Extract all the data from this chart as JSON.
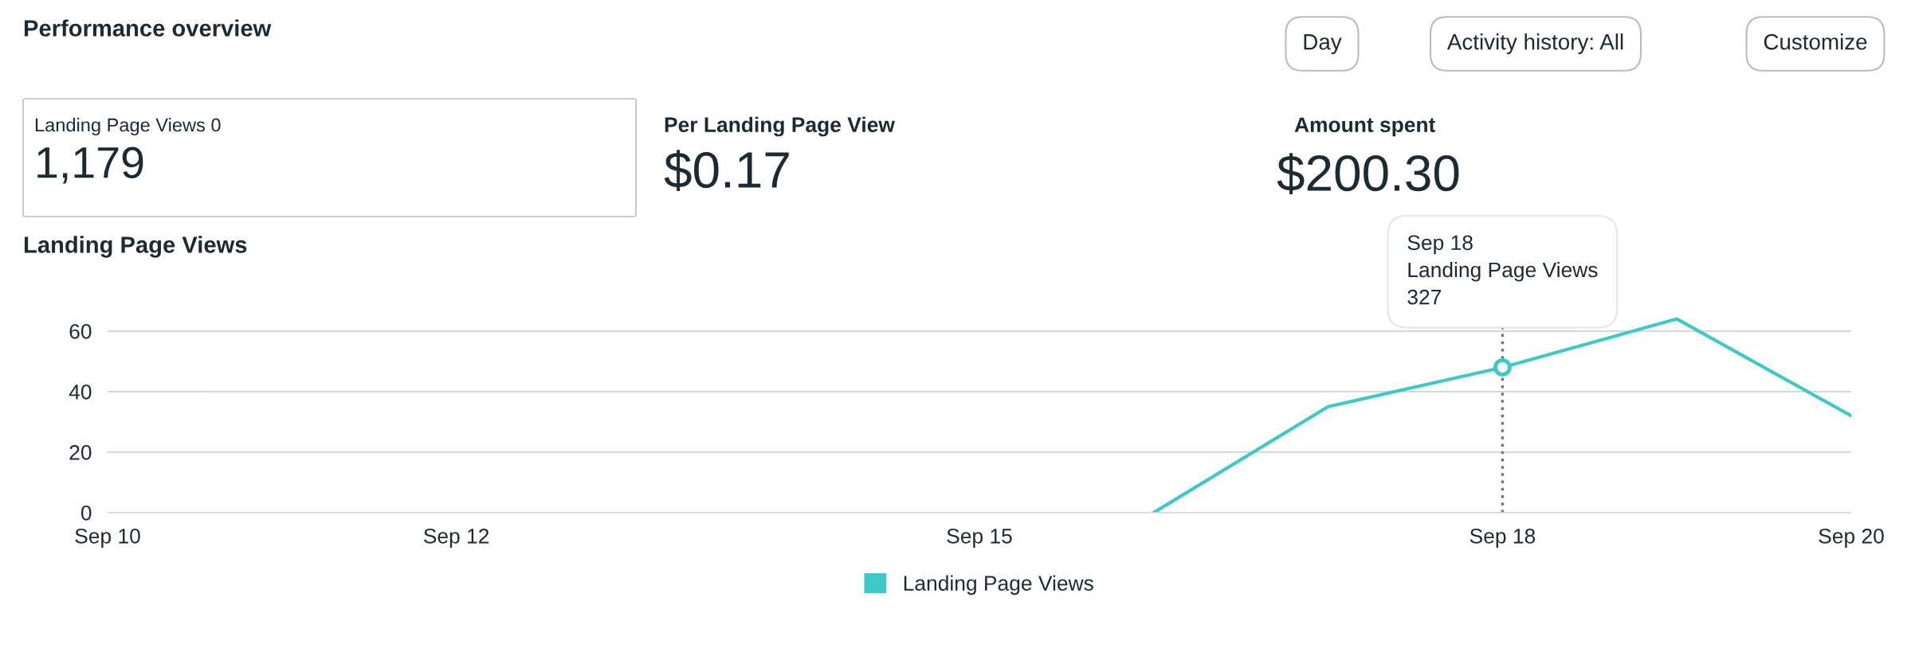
{
  "chart_data": [
    {
      "type": "other",
      "title": "Performance overview",
      "annotations": [
        "Day",
        "Activity history: All",
        "Customize",
        "Landing Page Views 0",
        "1,179",
        "Per Landing Page View",
        "$0.17",
        "Amount spent",
        "$200.30"
      ]
    },
    {
      "type": "line",
      "title": "Landing Page Views",
      "x": [
        "--09-16",
        "--09-17",
        "--09-18",
        "--09-19",
        "--09-20"
      ],
      "series": [
        {
          "name": "Landing Page Views",
          "color": "#3ec8c8",
          "values": [
            0,
            35,
            48,
            64,
            32
          ]
        }
      ],
      "xlim": [
        "--09-10",
        "--09-20"
      ],
      "xticks": [
        {
          "value": "--09-10",
          "label": "Sep 10"
        },
        {
          "value": "--09-12",
          "label": "Sep 12"
        },
        {
          "value": "--09-15",
          "label": "Sep 15"
        },
        {
          "value": "--09-18",
          "label": "Sep 18"
        },
        {
          "value": "--09-20",
          "label": "Sep 20"
        }
      ],
      "ylim": [
        0,
        70
      ],
      "yticks": [
        0,
        20,
        40,
        60
      ],
      "grid": "y",
      "legend": "bottom",
      "ref_lines": [
        {
          "axis": "x",
          "value": "--09-18",
          "color": "#777777",
          "line_style": "dotted"
        }
      ],
      "annotations": [
        {
          "text": "Sep 18\nLanding Page Views\n327",
          "x": "--09-18",
          "y": 48
        }
      ]
    }
  ]
}
